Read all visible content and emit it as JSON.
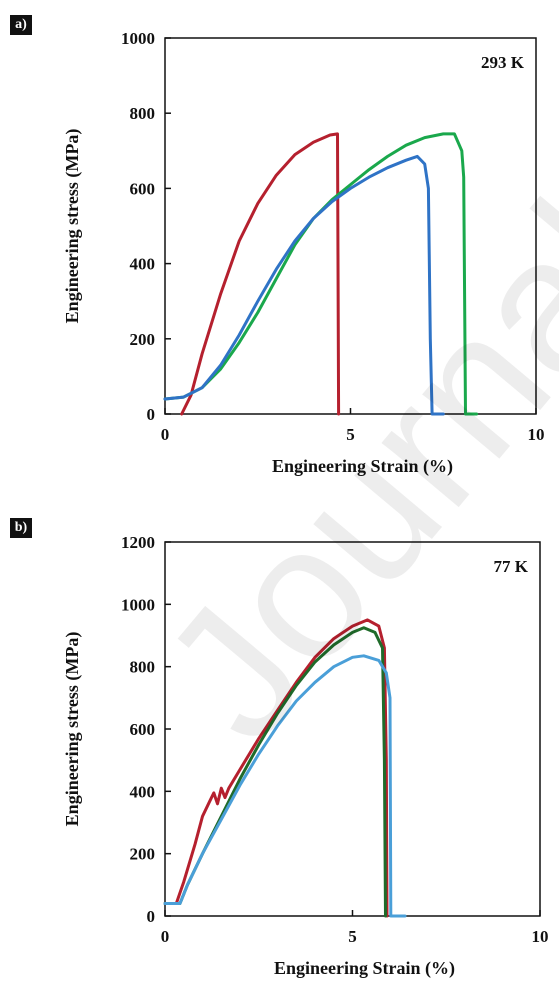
{
  "watermark": "Journal Pre-proof",
  "colors": {
    "red": "#b5202e",
    "green": "#1aa84c",
    "blue": "#2f73c6",
    "darkgreen": "#1f6b2a",
    "lightblue": "#4a9fd8"
  },
  "chart_data": [
    {
      "panel_label": "a)",
      "type": "line",
      "annotation": "293 K",
      "xlabel": "Engineering Strain (%)",
      "ylabel": "Engineering stress (MPa)",
      "xlim": [
        0,
        10
      ],
      "ylim": [
        0,
        1000
      ],
      "xticks": [
        "0",
        "5",
        "10"
      ],
      "yticks": [
        "0",
        "200",
        "400",
        "600",
        "800",
        "1000"
      ],
      "series": [
        {
          "color": "#b5202e",
          "points": [
            [
              0.45,
              0
            ],
            [
              0.7,
              50
            ],
            [
              1.0,
              160
            ],
            [
              1.5,
              320
            ],
            [
              2.0,
              460
            ],
            [
              2.5,
              560
            ],
            [
              3.0,
              635
            ],
            [
              3.5,
              690
            ],
            [
              4.0,
              723
            ],
            [
              4.45,
              742
            ],
            [
              4.65,
              745
            ],
            [
              4.68,
              0
            ]
          ]
        },
        {
          "color": "#1aa84c",
          "points": [
            [
              0,
              40
            ],
            [
              0.5,
              45
            ],
            [
              1.0,
              70
            ],
            [
              1.5,
              120
            ],
            [
              2.0,
              190
            ],
            [
              2.5,
              270
            ],
            [
              3.0,
              360
            ],
            [
              3.5,
              450
            ],
            [
              4.0,
              520
            ],
            [
              4.5,
              570
            ],
            [
              5.0,
              610
            ],
            [
              5.5,
              650
            ],
            [
              6.0,
              685
            ],
            [
              6.5,
              715
            ],
            [
              7.0,
              735
            ],
            [
              7.5,
              745
            ],
            [
              7.8,
              745
            ],
            [
              8.0,
              700
            ],
            [
              8.05,
              630
            ],
            [
              8.1,
              0
            ],
            [
              8.4,
              0
            ]
          ]
        },
        {
          "color": "#2f73c6",
          "points": [
            [
              0,
              40
            ],
            [
              0.5,
              45
            ],
            [
              1.0,
              70
            ],
            [
              1.5,
              130
            ],
            [
              2.0,
              210
            ],
            [
              2.5,
              300
            ],
            [
              3.0,
              385
            ],
            [
              3.5,
              460
            ],
            [
              4.0,
              520
            ],
            [
              4.5,
              565
            ],
            [
              5.0,
              600
            ],
            [
              5.5,
              630
            ],
            [
              6.0,
              655
            ],
            [
              6.5,
              675
            ],
            [
              6.8,
              685
            ],
            [
              7.0,
              665
            ],
            [
              7.1,
              600
            ],
            [
              7.15,
              200
            ],
            [
              7.2,
              0
            ],
            [
              7.5,
              0
            ]
          ]
        }
      ]
    },
    {
      "panel_label": "b)",
      "type": "line",
      "annotation": "77 K",
      "xlabel": "Engineering Strain (%)",
      "ylabel": "Engineering stress (MPa)",
      "xlim": [
        0,
        10
      ],
      "ylim": [
        0,
        1200
      ],
      "xticks": [
        "0",
        "5",
        "10"
      ],
      "yticks": [
        "0",
        "200",
        "400",
        "600",
        "800",
        "1000",
        "1200"
      ],
      "series": [
        {
          "color": "#b5202e",
          "points": [
            [
              0,
              40
            ],
            [
              0.3,
              40
            ],
            [
              0.5,
              110
            ],
            [
              0.8,
              230
            ],
            [
              1.0,
              320
            ],
            [
              1.2,
              370
            ],
            [
              1.3,
              395
            ],
            [
              1.4,
              360
            ],
            [
              1.5,
              410
            ],
            [
              1.6,
              380
            ],
            [
              1.7,
              410
            ],
            [
              2.0,
              470
            ],
            [
              2.5,
              570
            ],
            [
              3.0,
              660
            ],
            [
              3.5,
              750
            ],
            [
              4.0,
              830
            ],
            [
              4.5,
              890
            ],
            [
              5.0,
              930
            ],
            [
              5.4,
              950
            ],
            [
              5.7,
              930
            ],
            [
              5.85,
              860
            ],
            [
              5.9,
              500
            ],
            [
              5.92,
              0
            ]
          ]
        },
        {
          "color": "#1f6b2a",
          "points": [
            [
              0,
              40
            ],
            [
              0.4,
              40
            ],
            [
              0.6,
              100
            ],
            [
              1.0,
              200
            ],
            [
              1.5,
              320
            ],
            [
              2.0,
              440
            ],
            [
              2.5,
              550
            ],
            [
              3.0,
              650
            ],
            [
              3.5,
              740
            ],
            [
              4.0,
              815
            ],
            [
              4.5,
              870
            ],
            [
              5.0,
              910
            ],
            [
              5.3,
              925
            ],
            [
              5.6,
              910
            ],
            [
              5.8,
              860
            ],
            [
              5.85,
              500
            ],
            [
              5.88,
              0
            ]
          ]
        },
        {
          "color": "#4a9fd8",
          "points": [
            [
              0,
              40
            ],
            [
              0.4,
              40
            ],
            [
              0.6,
              100
            ],
            [
              1.0,
              200
            ],
            [
              1.5,
              310
            ],
            [
              2.0,
              420
            ],
            [
              2.5,
              520
            ],
            [
              3.0,
              610
            ],
            [
              3.5,
              690
            ],
            [
              4.0,
              750
            ],
            [
              4.5,
              800
            ],
            [
              5.0,
              830
            ],
            [
              5.3,
              835
            ],
            [
              5.7,
              820
            ],
            [
              5.9,
              780
            ],
            [
              6.0,
              700
            ],
            [
              6.02,
              0
            ],
            [
              6.4,
              0
            ]
          ]
        }
      ]
    }
  ]
}
